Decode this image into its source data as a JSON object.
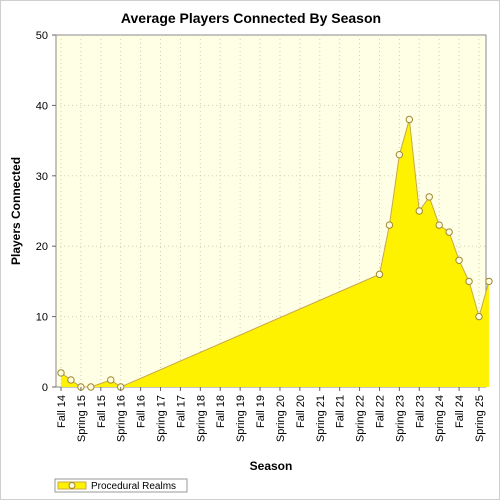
{
  "chart_data": {
    "type": "area",
    "title": "Average Players Connected By Season",
    "xlabel": "Season",
    "ylabel": "Players Connected",
    "ylim": [
      0,
      50
    ],
    "yticks": [
      0,
      10,
      20,
      30,
      40,
      50
    ],
    "grid": true,
    "legend_position": "bottom-left",
    "colors": {
      "fill": "#fff200",
      "line": "#c8a84a",
      "marker_fill": "#fffde0",
      "marker_stroke": "#a08830",
      "plot_background": "#ffffe6",
      "grid": "#d0d0b0"
    },
    "categories": [
      "Fall 14",
      "Spring 15",
      "Fall 15",
      "Spring 16",
      "Fall 16",
      "Spring 17",
      "Fall 17",
      "Spring 18",
      "Fall 18",
      "Spring 19",
      "Fall 19",
      "Spring 20",
      "Fall 20",
      "Spring 21",
      "Fall 21",
      "Spring 22",
      "Fall 22",
      "Spring 23",
      "Fall 23",
      "Spring 24",
      "Fall 24",
      "Spring 25"
    ],
    "series": [
      {
        "name": "Procedural Realms",
        "points": [
          {
            "x": 0,
            "y": 2
          },
          {
            "x": 0.5,
            "y": 1
          },
          {
            "x": 1,
            "y": 0
          },
          {
            "x": 1.5,
            "y": 0
          },
          {
            "x": 2.5,
            "y": 1
          },
          {
            "x": 3,
            "y": 0
          },
          {
            "x": 16,
            "y": 16
          },
          {
            "x": 16.5,
            "y": 23
          },
          {
            "x": 17,
            "y": 33
          },
          {
            "x": 17.5,
            "y": 38
          },
          {
            "x": 18,
            "y": 25
          },
          {
            "x": 18.5,
            "y": 27
          },
          {
            "x": 19,
            "y": 23
          },
          {
            "x": 19.5,
            "y": 22
          },
          {
            "x": 20,
            "y": 18
          },
          {
            "x": 20.5,
            "y": 15
          },
          {
            "x": 21,
            "y": 10
          },
          {
            "x": 21.5,
            "y": 15
          }
        ]
      }
    ]
  }
}
